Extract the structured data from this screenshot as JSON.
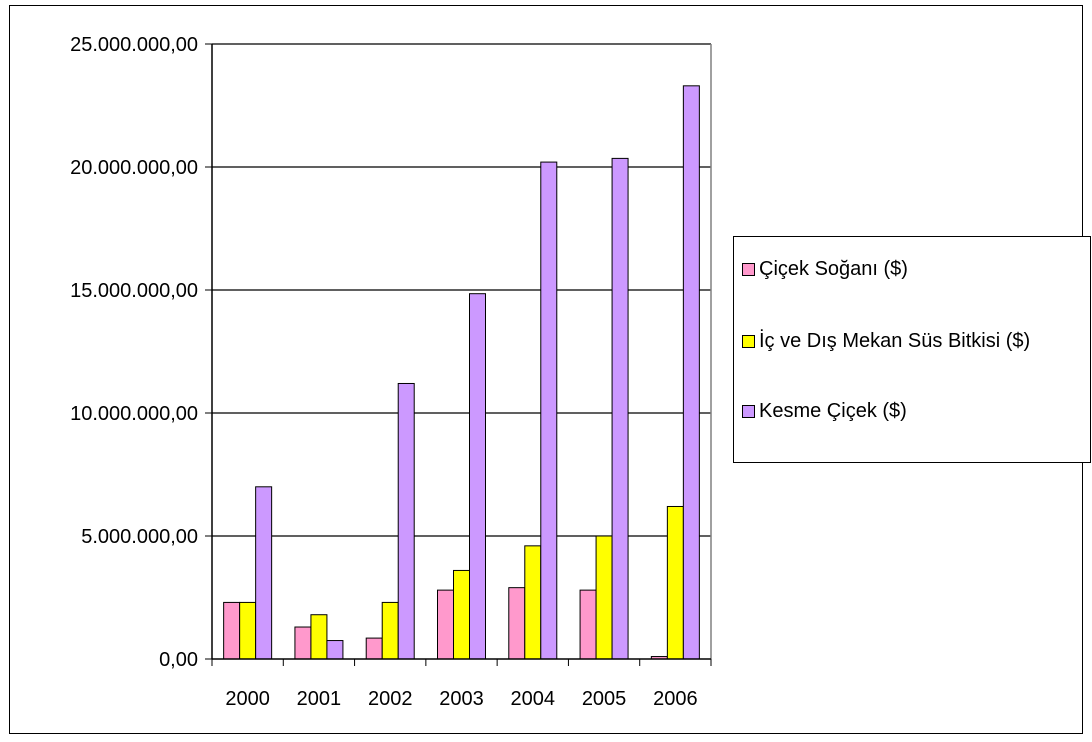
{
  "chart_data": {
    "type": "bar",
    "categories": [
      "2000",
      "2001",
      "2002",
      "2003",
      "2004",
      "2005",
      "2006"
    ],
    "series": [
      {
        "name": "Çiçek Soğanı ($)",
        "color": "#ff99cc",
        "values": [
          2300000,
          1300000,
          850000,
          2800000,
          2900000,
          2800000,
          100000
        ]
      },
      {
        "name": "İç ve Dış Mekan Süs Bitkisi ($)",
        "color": "#ffff00",
        "values": [
          2300000,
          1800000,
          2300000,
          3600000,
          4600000,
          5000000,
          6200000
        ]
      },
      {
        "name": "Kesme Çiçek ($)",
        "color": "#cc99ff",
        "values": [
          7000000,
          750000,
          11200000,
          14850000,
          20200000,
          20350000,
          23300000
        ]
      }
    ],
    "ylim": [
      0,
      25000000
    ],
    "y_ticks": [
      "0,00",
      "5.000.000,00",
      "10.000.000,00",
      "15.000.000,00",
      "20.000.000,00",
      "25.000.000,00"
    ],
    "y_tick_values": [
      0,
      5000000,
      10000000,
      15000000,
      20000000,
      25000000
    ],
    "title": "",
    "xlabel": "",
    "ylabel": "",
    "grid": true,
    "legend_position": "right"
  }
}
